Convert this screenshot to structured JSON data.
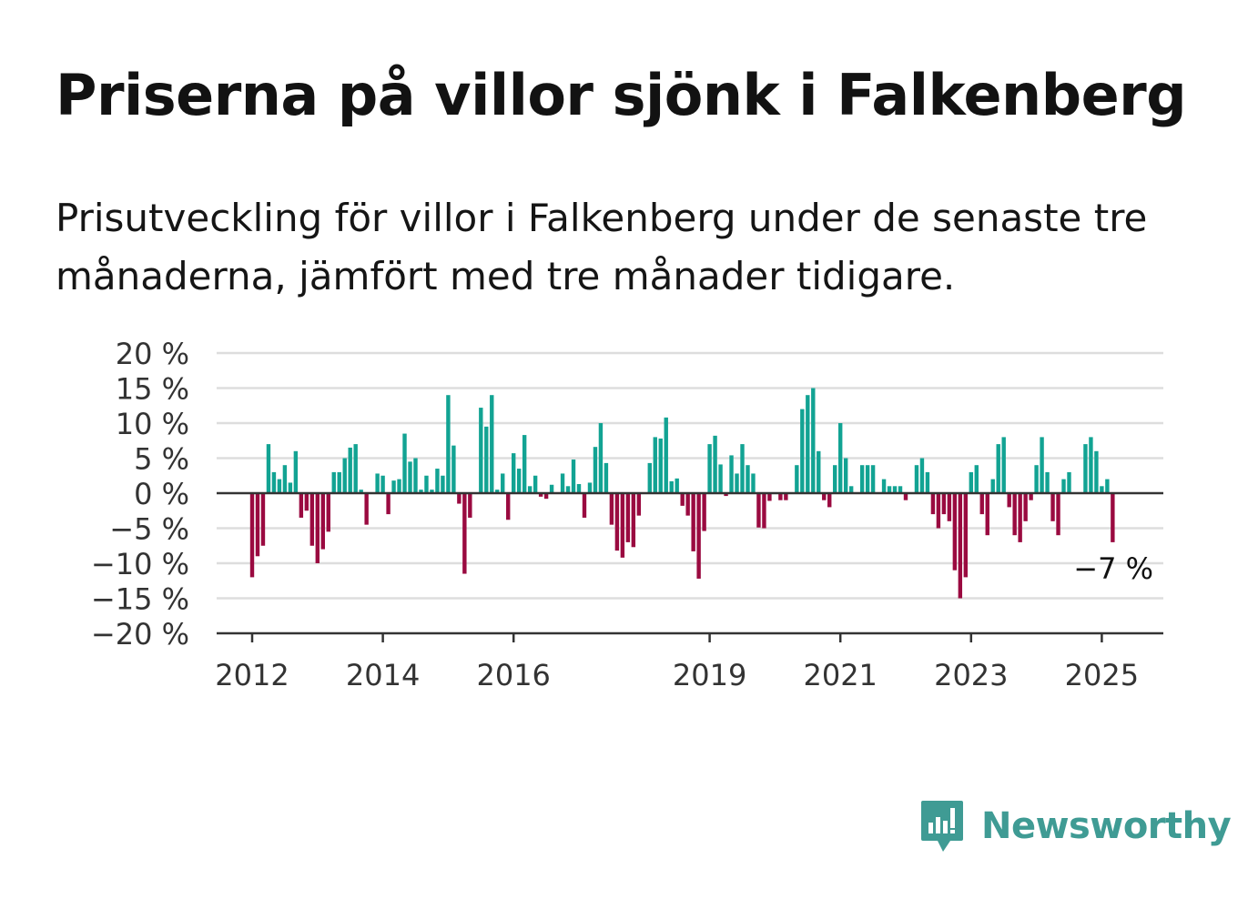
{
  "header": {
    "title": "Priserna på villor sjönk i Falkenberg",
    "subtitle": "Prisutveckling för villor i Falkenberg under de senaste tre månaderna, jämfört med tre månader tidigare."
  },
  "branding": {
    "name": "Newsworthy",
    "icon": "bar-chart-speech-bubble-icon",
    "color": "#3f9b94"
  },
  "colors": {
    "positive": "#12a393",
    "negative": "#9a0a40",
    "grid": "#dddddd",
    "axis": "#333333"
  },
  "chart_data": {
    "type": "bar",
    "title": "Priserna på villor sjönk i Falkenberg",
    "xlabel": "",
    "ylabel": "",
    "ylim": [
      -20,
      20
    ],
    "y_ticks": [
      20,
      15,
      10,
      5,
      0,
      -5,
      -10,
      -15,
      -20
    ],
    "y_tick_labels": [
      "20 %",
      "15 %",
      "10 %",
      "5 %",
      "0 %",
      "−5 %",
      "−10 %",
      "−15 %",
      "−20 %"
    ],
    "x_ticks": [
      "2012",
      "2014",
      "2016",
      "2019",
      "2021",
      "2023",
      "2025"
    ],
    "x_start": "2012-01",
    "x_end": "2025-03",
    "grid": true,
    "last_value_label": "−7 %",
    "values": [
      -12,
      -9,
      -7.5,
      7,
      3,
      2,
      4,
      1.5,
      6,
      -3.5,
      -2.5,
      -7.5,
      -10,
      -8,
      -5.5,
      3,
      3,
      5,
      6.5,
      7,
      0.5,
      -4.5,
      0,
      2.8,
      2.5,
      -3,
      1.8,
      2,
      8.5,
      4.5,
      5,
      0.5,
      2.5,
      0.5,
      3.5,
      2.5,
      14,
      6.8,
      -1.5,
      -11.5,
      -3.5,
      0,
      12.2,
      9.5,
      14,
      0.5,
      2.8,
      -3.8,
      5.7,
      3.5,
      8.3,
      1,
      2.5,
      -0.5,
      -0.8,
      1.2,
      0,
      2.8,
      1,
      4.8,
      1.3,
      -3.5,
      1.5,
      6.6,
      10,
      4.3,
      -4.5,
      -8.2,
      -9.2,
      -7,
      -7.7,
      -3.2,
      0,
      4.3,
      8,
      7.8,
      10.8,
      1.7,
      2.1,
      -1.8,
      -3.2,
      -8.3,
      -12.2,
      -5.4,
      7,
      8.2,
      4.1,
      -0.4,
      5.4,
      2.8,
      7,
      4,
      2.8,
      -4.9,
      -5,
      -1.1,
      0,
      -1,
      -1,
      0,
      4,
      12,
      14,
      15,
      6,
      -1,
      -2,
      4,
      10,
      5,
      1,
      0,
      4,
      4,
      4,
      0,
      2,
      1,
      1,
      1,
      -1,
      0,
      4,
      5,
      3,
      -3,
      -5,
      -3,
      -4,
      -11,
      -15,
      -12,
      3,
      4,
      -3,
      -6,
      2,
      7,
      8,
      -2,
      -6,
      -7,
      -4,
      -1,
      4,
      8,
      3,
      -4,
      -6,
      2,
      3,
      0,
      0,
      7,
      8,
      6,
      1,
      2,
      -7
    ]
  }
}
